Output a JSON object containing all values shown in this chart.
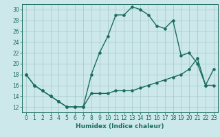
{
  "xlabel": "Humidex (Indice chaleur)",
  "ylabel": "",
  "bg_color": "#cce8ea",
  "grid_color": "#aacccc",
  "line_color": "#1a6b5e",
  "xlim": [
    -0.5,
    23.5
  ],
  "ylim": [
    11,
    31
  ],
  "xticks": [
    0,
    1,
    2,
    3,
    4,
    5,
    6,
    7,
    8,
    9,
    10,
    11,
    12,
    13,
    14,
    15,
    16,
    17,
    18,
    19,
    20,
    21,
    22,
    23
  ],
  "yticks": [
    12,
    14,
    16,
    18,
    20,
    22,
    24,
    26,
    28,
    30
  ],
  "series1_x": [
    0,
    1,
    2,
    3,
    4,
    5,
    6,
    7,
    8,
    9,
    10,
    11,
    12,
    13,
    14,
    15,
    16,
    17,
    18,
    19,
    20,
    21,
    22,
    23
  ],
  "series1_y": [
    18,
    16,
    15,
    14,
    13,
    12,
    12,
    12,
    18,
    22,
    25,
    29,
    29,
    30.5,
    30,
    29,
    27,
    26.5,
    28,
    21.5,
    22,
    20,
    16,
    19
  ],
  "series2_x": [
    0,
    1,
    2,
    3,
    4,
    5,
    6,
    7,
    8,
    9,
    10,
    11,
    12,
    13,
    14,
    15,
    16,
    17,
    18,
    19,
    20,
    21,
    22,
    23
  ],
  "series2_y": [
    18,
    16,
    15,
    14,
    13,
    12,
    12,
    12,
    14.5,
    14.5,
    14.5,
    15,
    15,
    15,
    15.5,
    16,
    16.5,
    17,
    17.5,
    18,
    19,
    21,
    16,
    16
  ],
  "marker_size": 2.2,
  "line_width": 1.0,
  "font_size_ticks": 5.5,
  "font_size_label": 6.5
}
